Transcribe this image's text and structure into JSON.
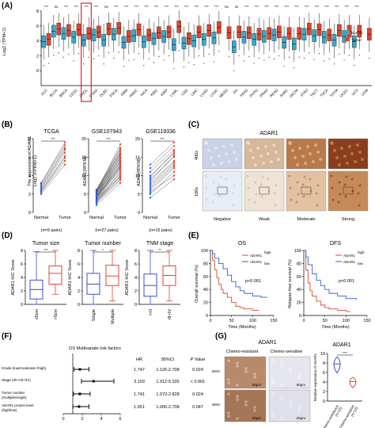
{
  "panels": {
    "A": "(A)",
    "B": "(B)",
    "C": "(C)",
    "D": "(D)",
    "E": "(E)",
    "F": "(F)",
    "G": "(G)"
  },
  "colors": {
    "normal": "#3aa7c9",
    "tumor": "#e0452c",
    "highline": "#e0452c",
    "lowline": "#2f5fd0",
    "redbox": "#e0202c"
  },
  "chart_data": [
    {
      "type": "box",
      "id": "A",
      "ylabel": "The expression of ADAR1\nLog2 (TPM+1)",
      "ylim": [
        -2,
        8
      ],
      "yticks": [
        0,
        2,
        4,
        6,
        8
      ],
      "legend": [
        "Normal",
        "Tumor"
      ],
      "categories": [
        "ACC",
        "BLCA",
        "BRCA",
        "CESC",
        "CHOL",
        "COAD",
        "DLBC",
        "ESCA",
        "GBM",
        "HNSC",
        "KICH",
        "KIRC",
        "KIRP",
        "LAML",
        "LGG",
        "LIHC",
        "LUAD",
        "LUSC",
        "MESO",
        "OV",
        "PAAD",
        "PCPG",
        "PRAD",
        "READ",
        "SARC",
        "SKCM",
        "STAD",
        "TGCT",
        "THCA",
        "THYM",
        "UCEC",
        "UCS",
        "UVM"
      ],
      "significance": [
        "***",
        "ns",
        "***",
        "***",
        "***",
        "***",
        "ns",
        "***",
        "***",
        "***",
        "***",
        "***",
        "***",
        "***",
        "***",
        "***",
        "***",
        "***",
        "ns",
        "ns",
        "***",
        "***",
        "***",
        "***",
        "***",
        "***",
        "***",
        "***",
        "***",
        "***",
        "***",
        "***",
        ""
      ],
      "series": [
        {
          "name": "Normal",
          "medians": [
            3.9,
            5.3,
            5.0,
            4.5,
            4.1,
            4.8,
            4.1,
            4.9,
            3.8,
            4.7,
            3.9,
            4.3,
            4.6,
            3.5,
            3.7,
            4.0,
            4.2,
            4.4,
            "",
            3.2,
            4.5,
            4.2,
            4.6,
            4.8,
            3.8,
            3.6,
            4.9,
            4.7,
            4.5,
            4.1,
            4.6,
            3.9,
            ""
          ]
        },
        {
          "name": "Tumor",
          "medians": [
            4.2,
            5.6,
            5.4,
            5.5,
            5.0,
            5.2,
            5.6,
            5.7,
            4.6,
            5.5,
            4.8,
            5.1,
            5.2,
            5.9,
            4.3,
            5.2,
            5.4,
            5.8,
            5.1,
            5.2,
            5.1,
            4.9,
            5.0,
            5.2,
            5.0,
            5.0,
            5.6,
            5.5,
            4.8,
            5.4,
            5.3,
            5.3,
            4.9
          ]
        }
      ],
      "highlight": "CHOL"
    },
    {
      "type": "line",
      "id": "B1",
      "title": "TCGA",
      "ylabel": "The expression of ADAR1\nLog2 (FPKM+1)",
      "ylim": [
        0,
        8
      ],
      "yticks": [
        0,
        2,
        4,
        6,
        8
      ],
      "categories": [
        "Normal",
        "Tumor"
      ],
      "sig": "***",
      "n_label": "(n=9 pairs)",
      "pairs": [
        [
          2.0,
          5.2
        ],
        [
          2.2,
          5.6
        ],
        [
          2.3,
          5.9
        ],
        [
          2.4,
          6.1
        ],
        [
          2.6,
          6.5
        ],
        [
          2.7,
          6.8
        ],
        [
          2.9,
          7.0
        ],
        [
          3.1,
          7.3
        ],
        [
          3.2,
          7.6
        ]
      ]
    },
    {
      "type": "line",
      "id": "B2",
      "title": "GSE107943",
      "ylabel": "ADAR1(RPKM)",
      "ylim": [
        0,
        20
      ],
      "yticks": [
        0,
        5,
        10,
        15,
        20
      ],
      "categories": [
        "Normal",
        "Tumor"
      ],
      "sig": "***",
      "n_label": "(n=27 pairs)",
      "pairs": [
        [
          2,
          8
        ],
        [
          2.5,
          9
        ],
        [
          3,
          10
        ],
        [
          3.2,
          11
        ],
        [
          3.5,
          12
        ],
        [
          3.8,
          12.5
        ],
        [
          4,
          13
        ],
        [
          4.2,
          13.5
        ],
        [
          4.5,
          14
        ],
        [
          4.7,
          14.5
        ],
        [
          5,
          15
        ],
        [
          5.2,
          15.5
        ],
        [
          5.5,
          16
        ],
        [
          5.8,
          16.5
        ],
        [
          6,
          17
        ],
        [
          6.2,
          17.5
        ],
        [
          3,
          9.5
        ],
        [
          3.6,
          10.5
        ],
        [
          4.1,
          11.5
        ],
        [
          4.6,
          12.8
        ],
        [
          5.1,
          13.8
        ],
        [
          5.6,
          14.8
        ],
        [
          6.1,
          15.8
        ],
        [
          2.8,
          8.8
        ],
        [
          3.4,
          9.8
        ],
        [
          4.4,
          12.2
        ],
        [
          5.4,
          18.5
        ]
      ]
    },
    {
      "type": "line",
      "id": "B3",
      "title": "GSE119336",
      "ylabel": "ADAR(RPKM)",
      "ylim": [
        0,
        20
      ],
      "yticks": [
        0,
        5,
        10,
        15,
        20
      ],
      "categories": [
        "Normal",
        "Tumor"
      ],
      "sig": "***",
      "n_label": "(n=15 pairs)",
      "pairs": [
        [
          4,
          9
        ],
        [
          5,
          11
        ],
        [
          6,
          12
        ],
        [
          7,
          13
        ],
        [
          8,
          14
        ],
        [
          9,
          15
        ],
        [
          10,
          16
        ],
        [
          11,
          17
        ],
        [
          12,
          18
        ],
        [
          5.5,
          10
        ],
        [
          6.5,
          12.5
        ],
        [
          7.5,
          13.5
        ],
        [
          8.5,
          15.5
        ],
        [
          9.5,
          16.5
        ],
        [
          13,
          19
        ]
      ]
    },
    {
      "type": "box",
      "id": "D1",
      "title": "Tumor size",
      "ylabel": "ADAR1 IHC Score",
      "ylim": [
        0,
        8
      ],
      "yticks": [
        0,
        2,
        4,
        6,
        8
      ],
      "sig": "***",
      "categories": [
        "≤5cm",
        ">5cm"
      ],
      "boxes": [
        {
          "min": 0,
          "q1": 0.8,
          "median": 2.2,
          "q3": 3.6,
          "max": 7.8
        },
        {
          "min": 1.5,
          "q1": 3.0,
          "median": 4.6,
          "q3": 5.7,
          "max": 8
        }
      ]
    },
    {
      "type": "box",
      "id": "D2",
      "title": "Tumor number",
      "ylabel": "ADAR1 IHC Score",
      "ylim": [
        0,
        8
      ],
      "yticks": [
        0,
        2,
        4,
        6,
        8
      ],
      "sig": "*",
      "categories": [
        "Single",
        "Multiple"
      ],
      "boxes": [
        {
          "min": 0,
          "q1": 1.5,
          "median": 3.0,
          "q3": 4.6,
          "max": 8
        },
        {
          "min": 0.5,
          "q1": 2.8,
          "median": 4.2,
          "q3": 5.8,
          "max": 8
        }
      ]
    },
    {
      "type": "box",
      "id": "D3",
      "title": "TNM stage",
      "ylabel": "ADAR1 IHC Score",
      "ylim": [
        0,
        8
      ],
      "yticks": [
        0,
        2,
        4,
        6,
        8
      ],
      "sig": "**",
      "categories": [
        "I+II",
        "III+IV"
      ],
      "boxes": [
        {
          "min": 0,
          "q1": 1.2,
          "median": 2.8,
          "q3": 4.5,
          "max": 8
        },
        {
          "min": 0.5,
          "q1": 2.8,
          "median": 4.3,
          "q3": 5.7,
          "max": 8
        }
      ]
    },
    {
      "type": "line",
      "id": "E1",
      "title": "OS",
      "ylabel": "Overall survival (%)",
      "xlabel": "Time (Months)",
      "xlim": [
        0,
        150
      ],
      "xticks": [
        0,
        50,
        100,
        150
      ],
      "ylim": [
        0,
        100
      ],
      "yticks": [
        0,
        20,
        40,
        60,
        80,
        100
      ],
      "legend": [
        "ADAR1",
        "ADAR1"
      ],
      "legend_sup": [
        "high",
        "low"
      ],
      "pvalue": "p<0.001",
      "series": [
        {
          "name": "high",
          "points": [
            [
              0,
              100
            ],
            [
              5,
              85
            ],
            [
              10,
              70
            ],
            [
              15,
              58
            ],
            [
              20,
              48
            ],
            [
              25,
              40
            ],
            [
              30,
              34
            ],
            [
              40,
              28
            ],
            [
              50,
              20
            ],
            [
              60,
              14
            ],
            [
              70,
              12
            ],
            [
              80,
              10
            ],
            [
              100,
              8
            ],
            [
              115,
              8
            ]
          ]
        },
        {
          "name": "low",
          "points": [
            [
              0,
              100
            ],
            [
              5,
              95
            ],
            [
              10,
              88
            ],
            [
              20,
              80
            ],
            [
              30,
              72
            ],
            [
              40,
              62
            ],
            [
              50,
              52
            ],
            [
              60,
              44
            ],
            [
              70,
              38
            ],
            [
              80,
              34
            ],
            [
              100,
              30
            ],
            [
              120,
              28
            ],
            [
              135,
              28
            ]
          ]
        }
      ]
    },
    {
      "type": "line",
      "id": "E2",
      "title": "DFS",
      "ylabel": "Relapse-free survival (%)",
      "xlabel": "Time (Months)",
      "xlim": [
        0,
        150
      ],
      "xticks": [
        0,
        50,
        100,
        150
      ],
      "ylim": [
        0,
        100
      ],
      "yticks": [
        0,
        20,
        40,
        60,
        80,
        100
      ],
      "legend": [
        "ADAR1",
        "ADAR1"
      ],
      "legend_sup": [
        "high",
        "low"
      ],
      "pvalue": "p<0.001",
      "series": [
        {
          "name": "high",
          "points": [
            [
              0,
              100
            ],
            [
              5,
              70
            ],
            [
              10,
              50
            ],
            [
              15,
              38
            ],
            [
              20,
              30
            ],
            [
              30,
              22
            ],
            [
              40,
              16
            ],
            [
              50,
              12
            ],
            [
              60,
              10
            ],
            [
              80,
              8
            ],
            [
              100,
              6
            ],
            [
              110,
              6
            ]
          ]
        },
        {
          "name": "low",
          "points": [
            [
              0,
              100
            ],
            [
              5,
              90
            ],
            [
              10,
              78
            ],
            [
              20,
              64
            ],
            [
              30,
              54
            ],
            [
              40,
              46
            ],
            [
              50,
              40
            ],
            [
              60,
              34
            ],
            [
              80,
              30
            ],
            [
              100,
              26
            ],
            [
              125,
              24
            ]
          ]
        }
      ]
    },
    {
      "type": "table",
      "id": "F",
      "title": "OS Multivariate risk factors",
      "headers": [
        "HR",
        "95%CI",
        "P Value"
      ],
      "xlim": [
        0,
        6
      ],
      "xticks": [
        0,
        2,
        4,
        6
      ],
      "rows": [
        {
          "label": "Grade (low/moderate+/high)",
          "hr": 1.747,
          "ci_low": 1.126,
          "ci_high": 2.708,
          "hr_text": "1.747",
          "ci_text": "1.126-2.708",
          "p": "0.024"
        },
        {
          "label": "Stage (I/II+/III+/IV)",
          "hr": 3.193,
          "ci_low": 1.912,
          "ci_high": 5.335,
          "hr_text": "3.193",
          "ci_text": "1.912-5.335",
          "p": "< 0.001"
        },
        {
          "label": "Tumor number\n(multiple/single)",
          "hr": 1.741,
          "ci_low": 1.072,
          "ci_high": 2.828,
          "hr_text": "1.741",
          "ci_text": "1.072-2.828",
          "p": "0.024"
        },
        {
          "label": "ADAR1 protein level\n(high/low)",
          "hr": 1.651,
          "ci_low": 1.006,
          "ci_high": 2.708,
          "hr_text": "1.651",
          "ci_text": "1.006-2.708",
          "p": "0.047"
        }
      ]
    },
    {
      "type": "violin",
      "id": "G",
      "title": "ADAR1",
      "ylabel": "Relative expression of ADAR1",
      "ylim": [
        0,
        10
      ],
      "yticks": [
        0,
        2,
        4,
        6,
        8,
        10
      ],
      "sig": "***",
      "categories": [
        "Chemo-resistance\n(n=12)",
        "Chemo-sensitive\n(n=12)"
      ],
      "values": [
        [
          6.2,
          7,
          7.4,
          7.8,
          8.1,
          8.6,
          9,
          6.8,
          7.2,
          8.3,
          9.3,
          5.9
        ],
        [
          3,
          3.4,
          3.8,
          4,
          4.2,
          4.5,
          4.8,
          5,
          3.6,
          4.1,
          4.6,
          2.8
        ]
      ]
    }
  ],
  "panelC": {
    "title": "ADAR1",
    "mag_top": "400x",
    "mag_bottom": "100x",
    "labels": [
      "Negative",
      "Weak",
      "Moderate",
      "Strong"
    ]
  },
  "panelG": {
    "title": "ADAR1",
    "col_labels": [
      "Chemo-resistant",
      "Chemo-sensitive"
    ],
    "row_labels": [
      "200X",
      "400X"
    ],
    "scale": [
      "50μm",
      "20μm"
    ]
  }
}
